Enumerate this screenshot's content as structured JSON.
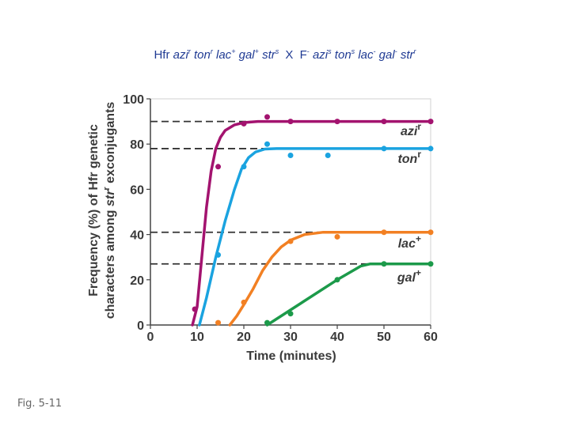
{
  "cross": {
    "hfr_label": "Hfr",
    "hfr_genotype": [
      {
        "gene": "azi",
        "sup": "r"
      },
      {
        "gene": "ton",
        "sup": "r"
      },
      {
        "gene": "lac",
        "sup": "+"
      },
      {
        "gene": "gal",
        "sup": "+"
      },
      {
        "gene": "str",
        "sup": "s"
      }
    ],
    "times": "X",
    "f_label": "F",
    "f_sup": "-",
    "f_genotype": [
      {
        "gene": "azi",
        "sup": "s"
      },
      {
        "gene": "ton",
        "sup": "s"
      },
      {
        "gene": "lac",
        "sup": "-"
      },
      {
        "gene": "gal",
        "sup": "-"
      },
      {
        "gene": "str",
        "sup": "r"
      }
    ]
  },
  "caption": "Fig. 5-11",
  "chart_data": {
    "type": "line",
    "title": "",
    "xlabel": "Time (minutes)",
    "ylabel_line1": "Frequency (%) of Hfr genetic",
    "ylabel_line2_prefix": "characters among ",
    "ylabel_line2_gene": "str",
    "ylabel_line2_sup": "r",
    "ylabel_line2_suffix": " exconjugants",
    "xlim": [
      0,
      60
    ],
    "ylim": [
      0,
      100
    ],
    "xticks": [
      0,
      10,
      20,
      30,
      40,
      50,
      60
    ],
    "yticks": [
      0,
      20,
      40,
      60,
      80,
      100
    ],
    "grid": false,
    "series": [
      {
        "name": "azi",
        "sup": "r",
        "color": "#a3136f",
        "plateau": 90,
        "curve": [
          [
            9,
            0
          ],
          [
            10,
            8
          ],
          [
            11,
            30
          ],
          [
            12,
            52
          ],
          [
            13,
            68
          ],
          [
            14,
            78
          ],
          [
            15,
            83
          ],
          [
            16,
            86
          ],
          [
            18,
            88.5
          ],
          [
            20,
            89.5
          ],
          [
            23,
            90
          ],
          [
            60,
            90
          ]
        ],
        "points": [
          [
            9.5,
            7
          ],
          [
            14.5,
            70
          ],
          [
            20,
            89
          ],
          [
            25,
            92
          ],
          [
            30,
            90
          ],
          [
            40,
            90
          ],
          [
            50,
            90
          ],
          [
            60,
            90
          ]
        ]
      },
      {
        "name": "ton",
        "sup": "r",
        "color": "#1aa3e0",
        "plateau": 78,
        "curve": [
          [
            10.5,
            0
          ],
          [
            12,
            12
          ],
          [
            14,
            30
          ],
          [
            16,
            46
          ],
          [
            18,
            60
          ],
          [
            19.5,
            69
          ],
          [
            21,
            74
          ],
          [
            22.5,
            76.5
          ],
          [
            24.5,
            77.8
          ],
          [
            27,
            78
          ],
          [
            60,
            78
          ]
        ],
        "points": [
          [
            14.5,
            31
          ],
          [
            20,
            70
          ],
          [
            25,
            80
          ],
          [
            30,
            75
          ],
          [
            38,
            75
          ],
          [
            50,
            78
          ],
          [
            60,
            78
          ]
        ]
      },
      {
        "name": "lac",
        "sup": "+",
        "color": "#f28023",
        "plateau": 41,
        "curve": [
          [
            17,
            0
          ],
          [
            18.5,
            4
          ],
          [
            20,
            9
          ],
          [
            22,
            16
          ],
          [
            24,
            24
          ],
          [
            26,
            30
          ],
          [
            28,
            34.5
          ],
          [
            30,
            37.5
          ],
          [
            33,
            40
          ],
          [
            37,
            41
          ],
          [
            40,
            41
          ],
          [
            60,
            41
          ]
        ],
        "points": [
          [
            14.5,
            1
          ],
          [
            20,
            10
          ],
          [
            30,
            37
          ],
          [
            40,
            39
          ],
          [
            50,
            41
          ],
          [
            60,
            41
          ]
        ]
      },
      {
        "name": "gal",
        "sup": "+",
        "color": "#1c9a4a",
        "plateau": 27,
        "curve": [
          [
            25,
            0
          ],
          [
            40,
            20
          ],
          [
            45,
            26
          ],
          [
            47,
            27
          ],
          [
            60,
            27
          ]
        ],
        "points": [
          [
            25,
            1
          ],
          [
            30,
            5
          ],
          [
            40,
            20
          ],
          [
            50,
            27
          ],
          [
            60,
            27
          ]
        ]
      }
    ]
  }
}
